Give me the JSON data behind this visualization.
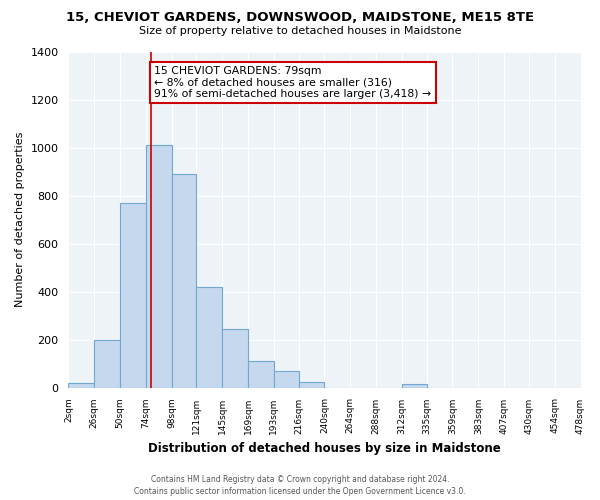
{
  "title": "15, CHEVIOT GARDENS, DOWNSWOOD, MAIDSTONE, ME15 8TE",
  "subtitle": "Size of property relative to detached houses in Maidstone",
  "xlabel": "Distribution of detached houses by size in Maidstone",
  "ylabel": "Number of detached properties",
  "footer_line1": "Contains HM Land Registry data © Crown copyright and database right 2024.",
  "footer_line2": "Contains public sector information licensed under the Open Government Licence v3.0.",
  "annotation_line1": "15 CHEVIOT GARDENS: 79sqm",
  "annotation_line2": "← 8% of detached houses are smaller (316)",
  "annotation_line3": "91% of semi-detached houses are larger (3,418) →",
  "bar_color": "#c5d8ee",
  "bar_edge_color": "#6fa8d0",
  "vline_color": "#cc0000",
  "vline_x": 79,
  "bin_edges": [
    2,
    26,
    50,
    74,
    98,
    121,
    145,
    169,
    193,
    216,
    240,
    264,
    288,
    312,
    335,
    359,
    383,
    407,
    430,
    454,
    478
  ],
  "bar_heights": [
    20,
    200,
    770,
    1010,
    890,
    420,
    245,
    110,
    70,
    22,
    0,
    0,
    0,
    15,
    0,
    0,
    0,
    0,
    0,
    0
  ],
  "tick_labels": [
    "2sqm",
    "26sqm",
    "50sqm",
    "74sqm",
    "98sqm",
    "121sqm",
    "145sqm",
    "169sqm",
    "193sqm",
    "216sqm",
    "240sqm",
    "264sqm",
    "288sqm",
    "312sqm",
    "335sqm",
    "359sqm",
    "383sqm",
    "407sqm",
    "430sqm",
    "454sqm",
    "478sqm"
  ],
  "ylim": [
    0,
    1400
  ],
  "yticks": [
    0,
    200,
    400,
    600,
    800,
    1000,
    1200,
    1400
  ],
  "plot_bg_color": "#eef3f8",
  "background_color": "#ffffff",
  "grid_color": "#ffffff"
}
